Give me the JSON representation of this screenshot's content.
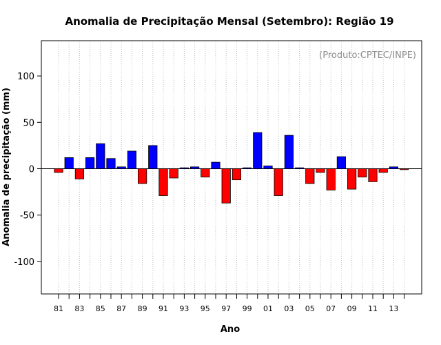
{
  "chart_data": {
    "type": "bar",
    "title": "Anomalia de Precipitação Mensal (Setembro): Região 19",
    "xlabel": "Ano",
    "ylabel": "Anomalia de precipitação (mm)",
    "annotation": "(Produto:CPTEC/INPE)",
    "ylim": [
      -135,
      138
    ],
    "yticks": [
      -100,
      -50,
      0,
      50,
      100
    ],
    "x_tick_labels": [
      "81",
      "83",
      "85",
      "87",
      "89",
      "91",
      "93",
      "95",
      "97",
      "99",
      "01",
      "03",
      "05",
      "07",
      "09",
      "11",
      "13"
    ],
    "grid": "vertical dotted",
    "colors": {
      "positive": "#0000ff",
      "negative": "#ff0000",
      "grid": "#c0c0c0",
      "credit": "#8c8c8c"
    },
    "categories": [
      "1981",
      "1982",
      "1983",
      "1984",
      "1985",
      "1986",
      "1987",
      "1988",
      "1989",
      "1990",
      "1991",
      "1992",
      "1993",
      "1994",
      "1995",
      "1996",
      "1997",
      "1998",
      "1999",
      "2000",
      "2001",
      "2002",
      "2003",
      "2004",
      "2005",
      "2006",
      "2007",
      "2008",
      "2009",
      "2010",
      "2011",
      "2012",
      "2013",
      "2014"
    ],
    "values": [
      -4,
      12,
      -11,
      12,
      27,
      11,
      2,
      19,
      -16,
      25,
      -29,
      -10,
      1,
      2,
      -9,
      7,
      -37,
      -12,
      1,
      39,
      3,
      -29,
      36,
      1,
      -16,
      -4,
      -23,
      13,
      -22,
      -9,
      -14,
      -4,
      2,
      -1
    ]
  }
}
